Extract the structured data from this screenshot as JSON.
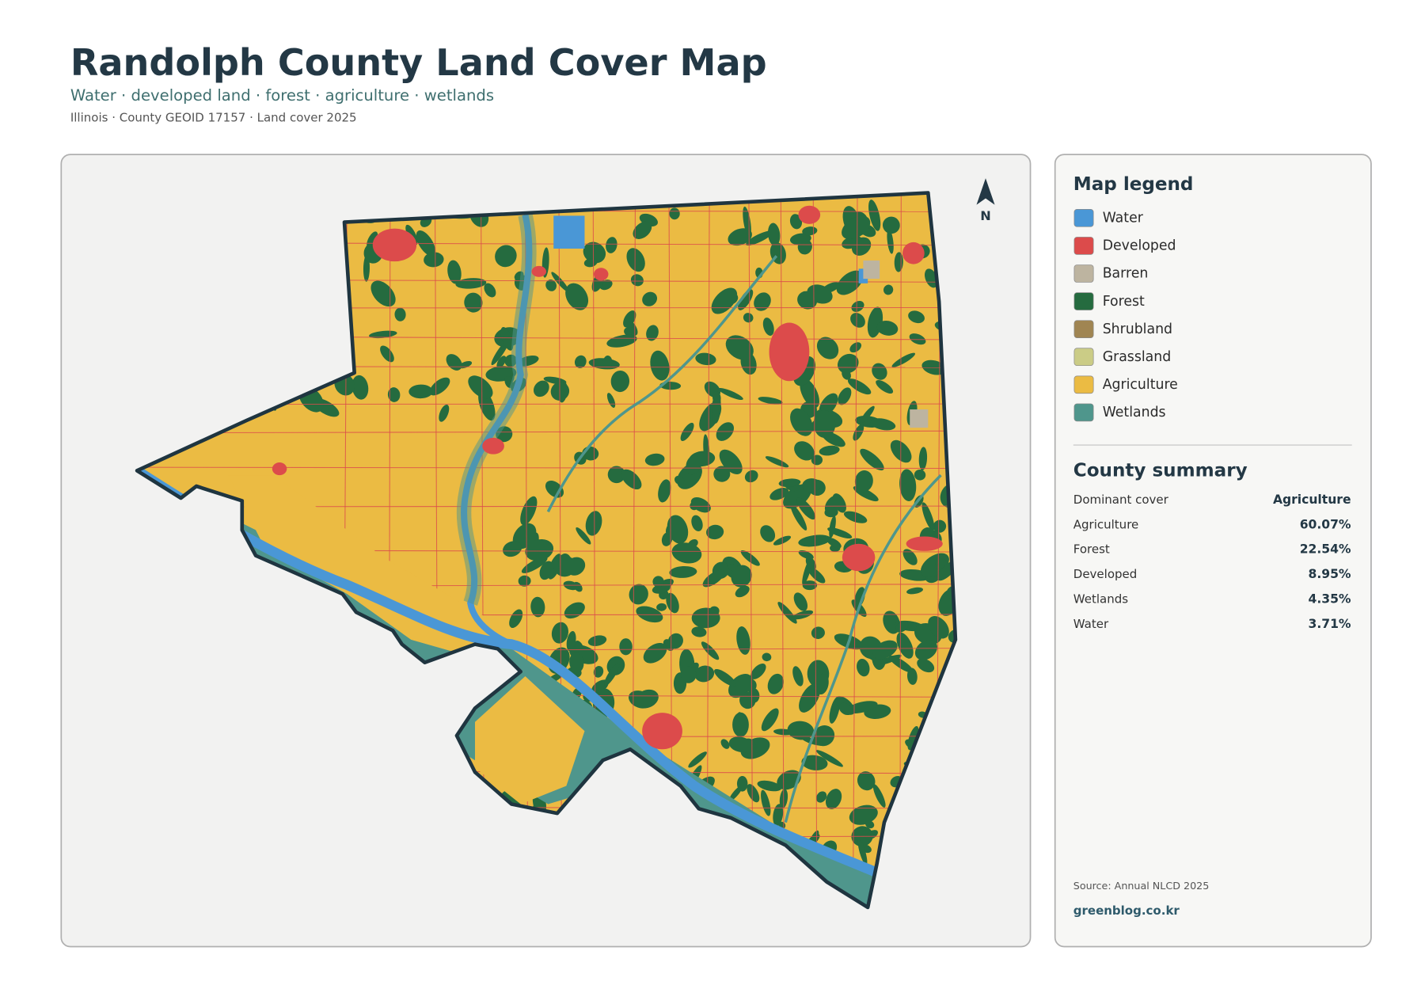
{
  "header": {
    "title": "Randolph County Land Cover Map",
    "subtitle": "Water · developed land · forest · agriculture · wetlands",
    "meta": "Illinois · County GEOID 17157 · Land cover 2025"
  },
  "map": {
    "north_label": "N"
  },
  "legend": {
    "title": "Map legend",
    "items": [
      {
        "label": "Water",
        "color": "#4a97d6"
      },
      {
        "label": "Developed",
        "color": "#dc4b4b"
      },
      {
        "label": "Barren",
        "color": "#bdb4a0"
      },
      {
        "label": "Forest",
        "color": "#256b3f"
      },
      {
        "label": "Shrubland",
        "color": "#a08552"
      },
      {
        "label": "Grassland",
        "color": "#cbcc86"
      },
      {
        "label": "Agriculture",
        "color": "#ebbb43"
      },
      {
        "label": "Wetlands",
        "color": "#4f968c"
      }
    ]
  },
  "summary": {
    "title": "County summary",
    "rows": [
      [
        "Dominant cover",
        "Agriculture"
      ],
      [
        "Agriculture",
        "60.07%"
      ],
      [
        "Forest",
        "22.54%"
      ],
      [
        "Developed",
        "8.95%"
      ],
      [
        "Wetlands",
        "4.35%"
      ],
      [
        "Water",
        "3.71%"
      ]
    ]
  },
  "footer": {
    "source": "Source: Annual NLCD 2025",
    "credit": "greenblog.co.kr"
  }
}
